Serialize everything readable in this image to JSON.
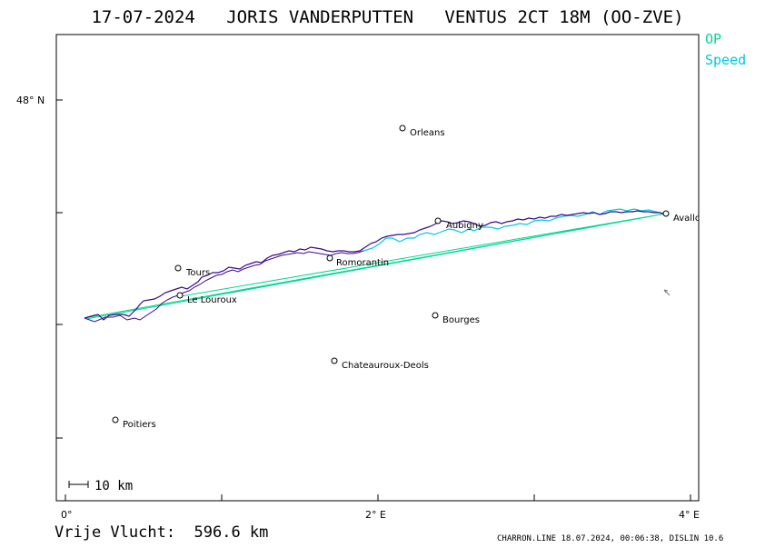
{
  "header": {
    "title": "17-07-2024   JORIS VANDERPUTTEN   VENTUS 2CT 18M (OO-ZVE)"
  },
  "legend": {
    "op": "OP",
    "speed": "Speed",
    "op_color": "#00d98f",
    "speed_color": "#00c8e0",
    "track_color": "#3a0a8a"
  },
  "axes": {
    "lat_label": "48° N",
    "lon_labels": [
      "0°",
      "2° E",
      "4° E"
    ]
  },
  "scale_bar": {
    "label": "10 km"
  },
  "cities": [
    {
      "name": "Orleans"
    },
    {
      "name": "Aubigny"
    },
    {
      "name": "Avallon"
    },
    {
      "name": "Tours"
    },
    {
      "name": "Romorantin"
    },
    {
      "name": "Le Louroux"
    },
    {
      "name": "Bourges"
    },
    {
      "name": "Chateauroux-Deols"
    },
    {
      "name": "Poitiers"
    }
  ],
  "footer": {
    "distance": "Vrije Vlucht:  596.6 km",
    "credits": "CHARRON.LINE 18.07.2024, 00:06:38, DISLIN 10.6"
  }
}
